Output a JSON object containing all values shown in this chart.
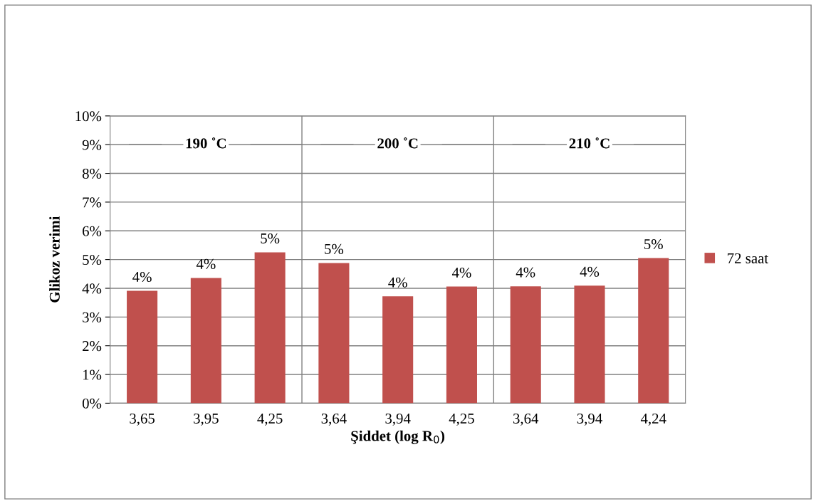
{
  "chart_data": {
    "type": "bar",
    "xlabel": "Şiddet (log R$_{0}$)",
    "ylabel": "Glikoz verimi",
    "categories": [
      "3,65",
      "3,95",
      "4,25",
      "3,64",
      "3,94",
      "4,25",
      "3,64",
      "3,94",
      "4,24"
    ],
    "series": [
      {
        "name": "72 saat",
        "color": "#c0504d",
        "values": [
          3.91,
          4.36,
          5.25,
          4.88,
          3.72,
          4.06,
          4.07,
          4.09,
          5.05
        ],
        "value_labels": [
          "4%",
          "4%",
          "5%",
          "5%",
          "4%",
          "4%",
          "4%",
          "4%",
          "5%"
        ]
      }
    ],
    "annotations": [
      "190 ˚C",
      "200 ˚C",
      "210 ˚C"
    ],
    "ylim": [
      0,
      10
    ],
    "yticks": [
      {
        "value": 0,
        "label": "0%"
      },
      {
        "value": 1,
        "label": "1%"
      },
      {
        "value": 2,
        "label": "2%"
      },
      {
        "value": 3,
        "label": "3%"
      },
      {
        "value": 4,
        "label": "4%"
      },
      {
        "value": 5,
        "label": "5%"
      },
      {
        "value": 6,
        "label": "6%"
      },
      {
        "value": 7,
        "label": "7%"
      },
      {
        "value": 8,
        "label": "8%"
      },
      {
        "value": 9,
        "label": "9%"
      },
      {
        "value": 10,
        "label": "10%"
      }
    ],
    "grid": "y",
    "legend": "right"
  }
}
